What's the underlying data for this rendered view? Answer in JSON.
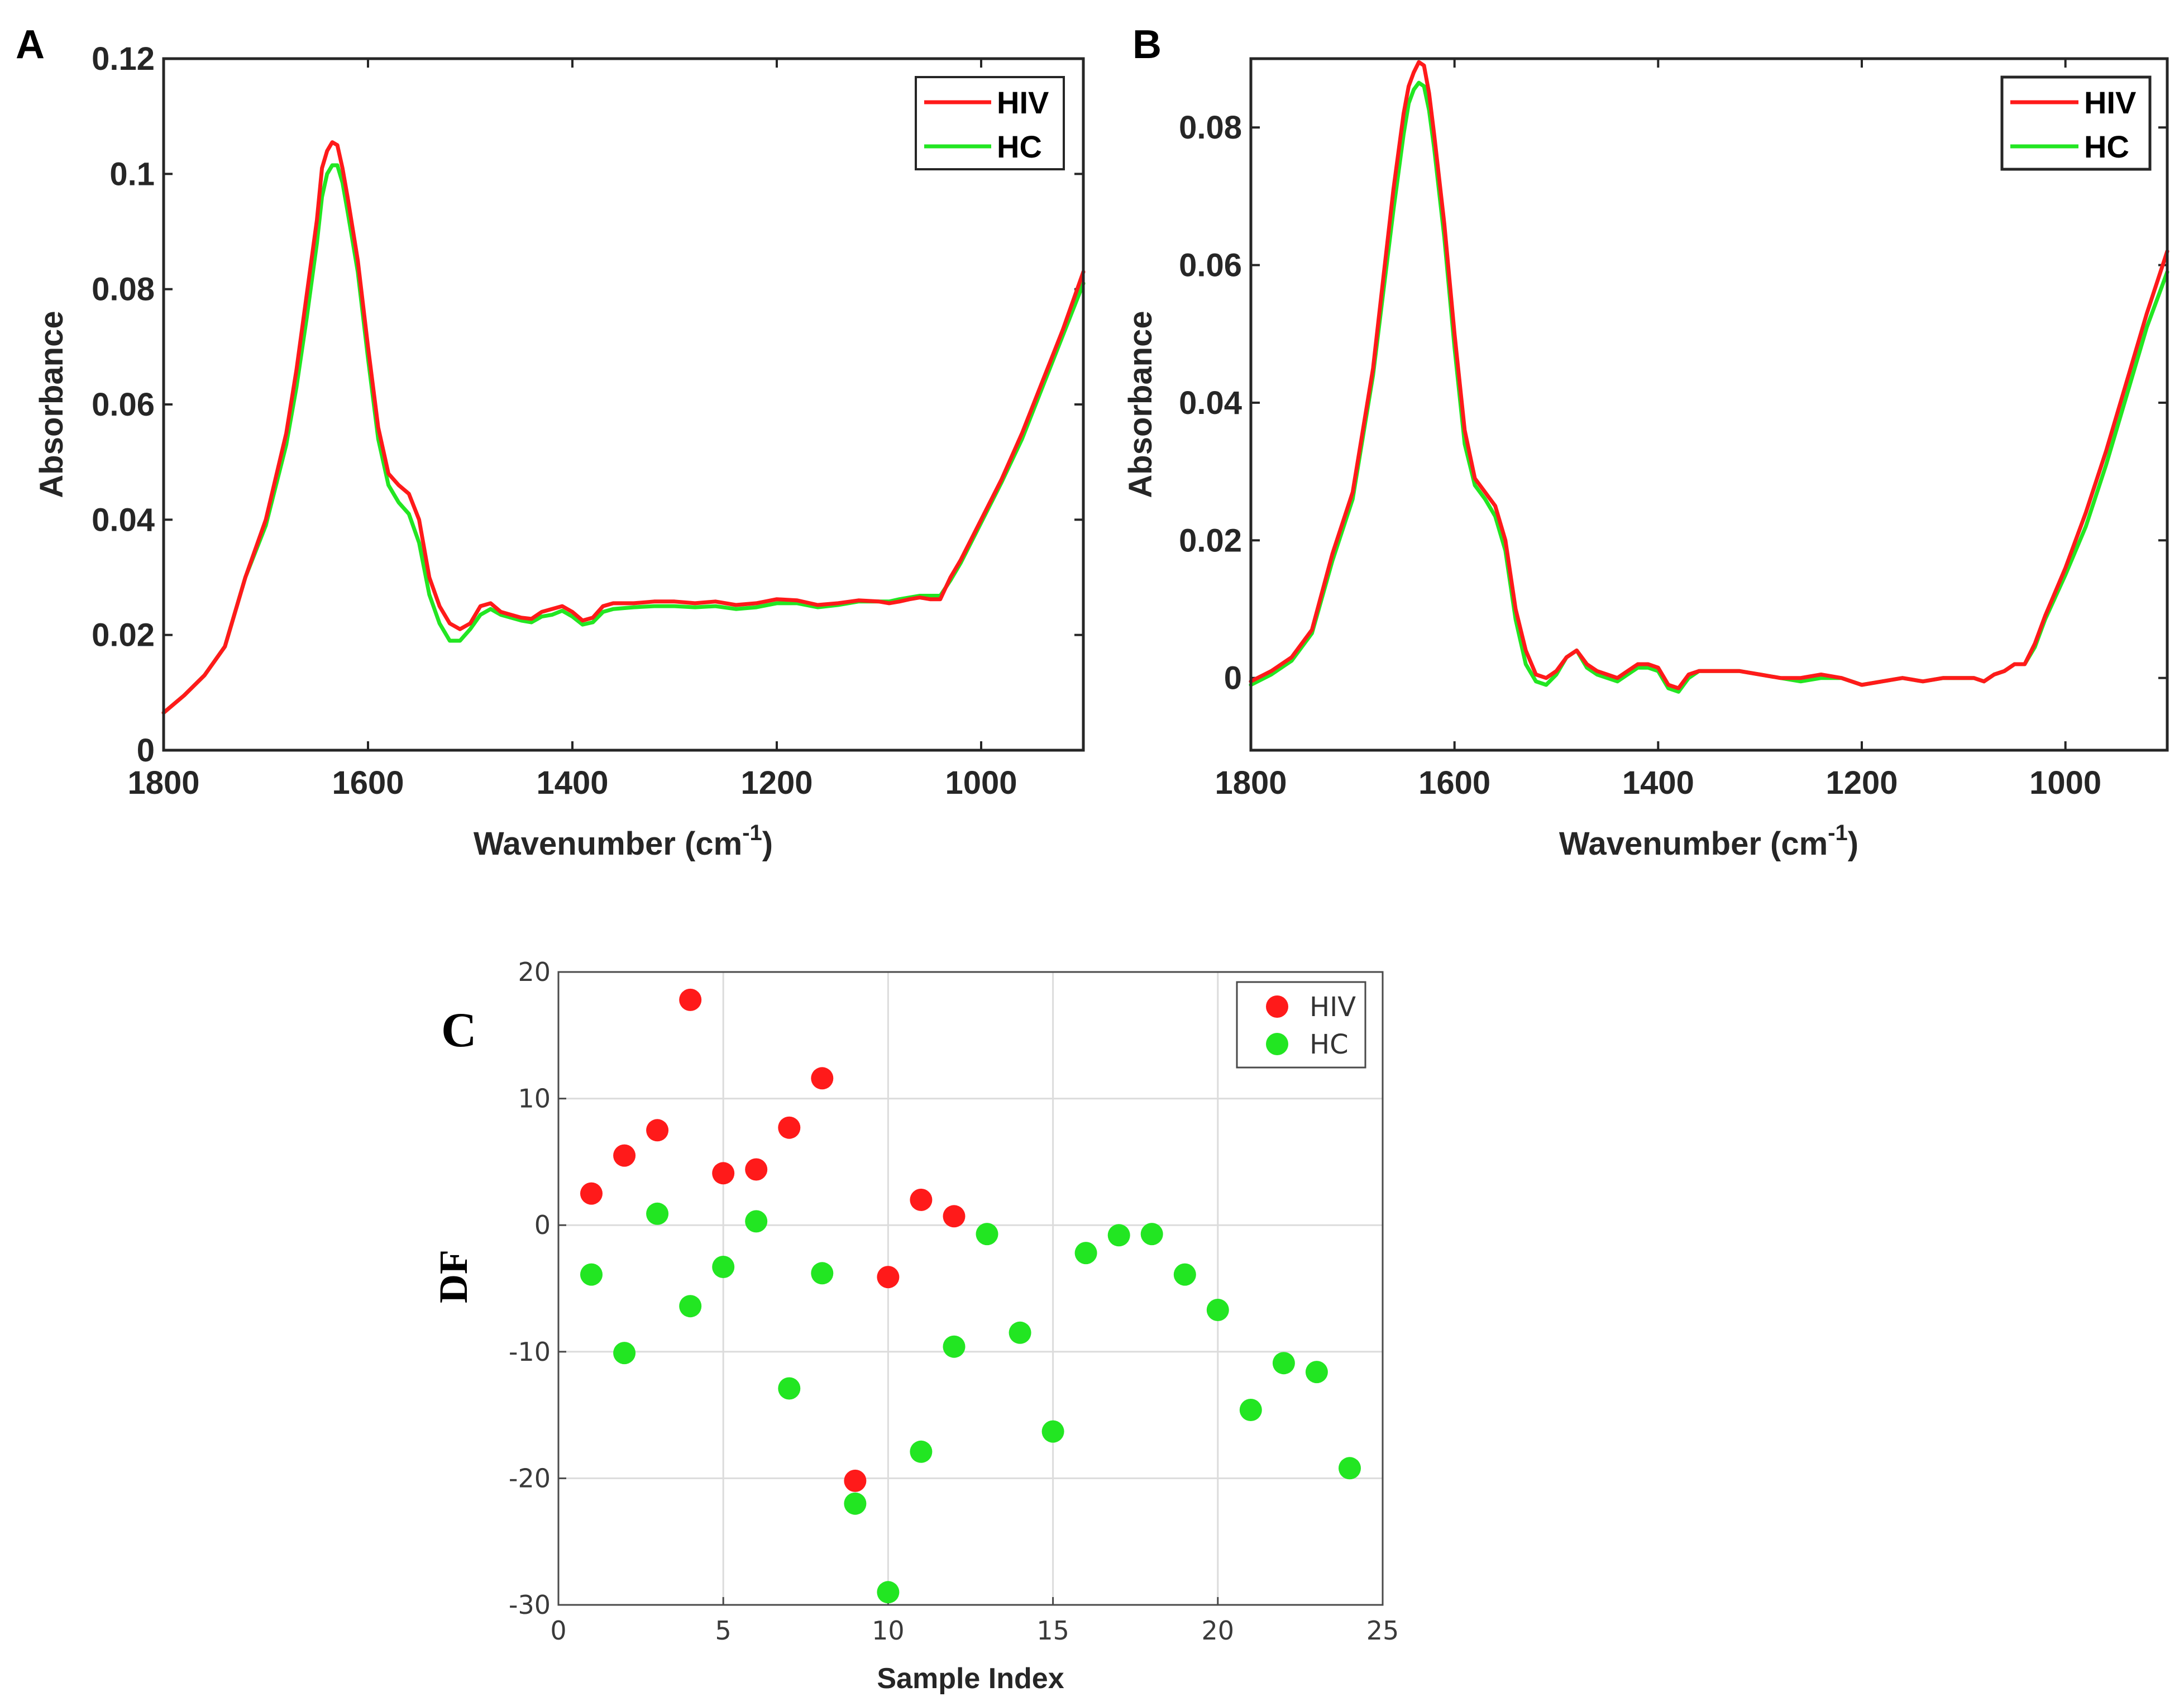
{
  "colors": {
    "hiv": "#ff1a1a",
    "hc": "#22e622"
  },
  "chart_data": [
    {
      "panel": "A",
      "type": "line",
      "xlabel": "Wavenumber (cm",
      "xlabel_sup": "-1",
      "xlabel_close": ")",
      "ylabel": "Absorbance",
      "xlim": [
        1800,
        900
      ],
      "ylim": [
        0,
        0.12
      ],
      "xticks": [
        1800,
        1600,
        1400,
        1200,
        1000
      ],
      "xtick_labels": [
        "1800",
        "1600",
        "1400",
        "1200",
        "1000"
      ],
      "yticks": [
        0,
        0.02,
        0.04,
        0.06,
        0.08,
        0.1,
        0.12
      ],
      "ytick_labels": [
        "0",
        "0.02",
        "0.04",
        "0.06",
        "0.08",
        "0.1",
        "0.12"
      ],
      "legend": "top-right",
      "series": [
        {
          "name": "HIV",
          "color": "#ff1a1a",
          "x": [
            1800,
            1780,
            1760,
            1740,
            1720,
            1700,
            1680,
            1670,
            1660,
            1650,
            1645,
            1640,
            1635,
            1630,
            1625,
            1620,
            1610,
            1600,
            1590,
            1580,
            1570,
            1560,
            1550,
            1540,
            1530,
            1520,
            1510,
            1500,
            1490,
            1480,
            1470,
            1460,
            1450,
            1440,
            1430,
            1420,
            1410,
            1400,
            1390,
            1380,
            1370,
            1360,
            1340,
            1320,
            1300,
            1280,
            1260,
            1240,
            1220,
            1200,
            1180,
            1160,
            1140,
            1120,
            1100,
            1090,
            1080,
            1070,
            1060,
            1050,
            1040,
            1030,
            1020,
            1000,
            980,
            960,
            940,
            920,
            900
          ],
          "y": [
            0.0065,
            0.0095,
            0.013,
            0.018,
            0.03,
            0.04,
            0.055,
            0.066,
            0.079,
            0.092,
            0.101,
            0.104,
            0.1055,
            0.105,
            0.101,
            0.096,
            0.085,
            0.07,
            0.056,
            0.048,
            0.046,
            0.0445,
            0.04,
            0.03,
            0.025,
            0.022,
            0.021,
            0.022,
            0.025,
            0.0255,
            0.024,
            0.0235,
            0.023,
            0.0228,
            0.024,
            0.0245,
            0.025,
            0.024,
            0.0225,
            0.023,
            0.025,
            0.0255,
            0.0255,
            0.0258,
            0.0258,
            0.0255,
            0.0258,
            0.0252,
            0.0255,
            0.0262,
            0.026,
            0.0252,
            0.0255,
            0.026,
            0.0258,
            0.0255,
            0.0258,
            0.0262,
            0.0265,
            0.0262,
            0.0262,
            0.03,
            0.033,
            0.04,
            0.047,
            0.055,
            0.064,
            0.073,
            0.083
          ]
        },
        {
          "name": "HC",
          "color": "#22e622",
          "x": [
            1800,
            1780,
            1760,
            1740,
            1720,
            1700,
            1680,
            1670,
            1660,
            1650,
            1645,
            1640,
            1635,
            1630,
            1625,
            1620,
            1610,
            1600,
            1590,
            1580,
            1570,
            1560,
            1550,
            1540,
            1530,
            1520,
            1510,
            1500,
            1490,
            1480,
            1470,
            1460,
            1450,
            1440,
            1430,
            1420,
            1410,
            1400,
            1390,
            1380,
            1370,
            1360,
            1340,
            1320,
            1300,
            1280,
            1260,
            1240,
            1220,
            1200,
            1180,
            1160,
            1140,
            1120,
            1100,
            1090,
            1080,
            1070,
            1060,
            1050,
            1040,
            1030,
            1020,
            1000,
            980,
            960,
            940,
            920,
            900
          ],
          "y": [
            0.0065,
            0.0095,
            0.013,
            0.018,
            0.03,
            0.039,
            0.053,
            0.063,
            0.075,
            0.088,
            0.096,
            0.1,
            0.1015,
            0.1015,
            0.0985,
            0.0935,
            0.083,
            0.068,
            0.054,
            0.046,
            0.043,
            0.041,
            0.036,
            0.027,
            0.022,
            0.019,
            0.019,
            0.021,
            0.0235,
            0.0245,
            0.0235,
            0.023,
            0.0225,
            0.0222,
            0.0232,
            0.0235,
            0.0242,
            0.0232,
            0.0218,
            0.0222,
            0.024,
            0.0245,
            0.0248,
            0.025,
            0.025,
            0.0248,
            0.025,
            0.0245,
            0.0248,
            0.0255,
            0.0255,
            0.0248,
            0.0252,
            0.0258,
            0.0258,
            0.0258,
            0.0262,
            0.0265,
            0.0268,
            0.0268,
            0.0268,
            0.0295,
            0.0325,
            0.0395,
            0.0465,
            0.054,
            0.063,
            0.072,
            0.081
          ]
        }
      ]
    },
    {
      "panel": "B",
      "type": "line",
      "xlabel": "Wavenumber (cm",
      "xlabel_sup": "-1",
      "xlabel_close": ")",
      "ylabel": "Absorbance",
      "xlim": [
        1800,
        900
      ],
      "ylim": [
        -0.0105,
        0.09
      ],
      "xticks": [
        1800,
        1600,
        1400,
        1200,
        1000
      ],
      "xtick_labels": [
        "1800",
        "1600",
        "1400",
        "1200",
        "1000"
      ],
      "yticks": [
        0,
        0.02,
        0.04,
        0.06,
        0.08
      ],
      "ytick_labels": [
        "0",
        "0.02",
        "0.04",
        "0.06",
        "0.08"
      ],
      "legend": "top-right",
      "series": [
        {
          "name": "HIV",
          "color": "#ff1a1a",
          "x": [
            1800,
            1780,
            1760,
            1740,
            1720,
            1700,
            1680,
            1670,
            1660,
            1650,
            1645,
            1640,
            1635,
            1630,
            1625,
            1620,
            1610,
            1600,
            1590,
            1580,
            1570,
            1560,
            1550,
            1540,
            1530,
            1520,
            1510,
            1500,
            1490,
            1480,
            1470,
            1460,
            1450,
            1440,
            1430,
            1420,
            1410,
            1400,
            1390,
            1380,
            1370,
            1360,
            1340,
            1320,
            1300,
            1280,
            1260,
            1240,
            1220,
            1200,
            1180,
            1160,
            1140,
            1120,
            1100,
            1090,
            1080,
            1070,
            1060,
            1050,
            1040,
            1030,
            1020,
            1000,
            980,
            960,
            940,
            920,
            900
          ],
          "y": [
            -0.0005,
            0.001,
            0.003,
            0.007,
            0.018,
            0.027,
            0.045,
            0.058,
            0.071,
            0.082,
            0.086,
            0.088,
            0.0895,
            0.089,
            0.085,
            0.079,
            0.066,
            0.05,
            0.036,
            0.029,
            0.027,
            0.025,
            0.02,
            0.01,
            0.004,
            0.0005,
            0,
            0.001,
            0.003,
            0.004,
            0.002,
            0.001,
            0.0005,
            0,
            0.001,
            0.002,
            0.002,
            0.0015,
            -0.001,
            -0.0015,
            0.0005,
            0.001,
            0.001,
            0.001,
            0.0005,
            0,
            0,
            0.0005,
            0,
            -0.001,
            -0.0005,
            0,
            -0.0005,
            0,
            0,
            0,
            -0.0005,
            0.0005,
            0.001,
            0.002,
            0.002,
            0.005,
            0.009,
            0.016,
            0.024,
            0.033,
            0.043,
            0.053,
            0.062
          ]
        },
        {
          "name": "HC",
          "color": "#22e622",
          "x": [
            1800,
            1780,
            1760,
            1740,
            1720,
            1700,
            1680,
            1670,
            1660,
            1650,
            1645,
            1640,
            1635,
            1630,
            1625,
            1620,
            1610,
            1600,
            1590,
            1580,
            1570,
            1560,
            1550,
            1540,
            1530,
            1520,
            1510,
            1500,
            1490,
            1480,
            1470,
            1460,
            1450,
            1440,
            1430,
            1420,
            1410,
            1400,
            1390,
            1380,
            1370,
            1360,
            1340,
            1320,
            1300,
            1280,
            1260,
            1240,
            1220,
            1200,
            1180,
            1160,
            1140,
            1120,
            1100,
            1090,
            1080,
            1070,
            1060,
            1050,
            1040,
            1030,
            1020,
            1000,
            980,
            960,
            940,
            920,
            900
          ],
          "y": [
            -0.001,
            0.0005,
            0.0025,
            0.0065,
            0.017,
            0.026,
            0.044,
            0.056,
            0.068,
            0.079,
            0.0835,
            0.0855,
            0.0865,
            0.086,
            0.0825,
            0.077,
            0.064,
            0.048,
            0.034,
            0.028,
            0.026,
            0.0235,
            0.0185,
            0.0085,
            0.002,
            -0.0005,
            -0.001,
            0.0005,
            0.003,
            0.004,
            0.0015,
            0.0005,
            0,
            -0.0005,
            0.0005,
            0.0015,
            0.0015,
            0.001,
            -0.0015,
            -0.002,
            0,
            0.001,
            0.001,
            0.001,
            0.0005,
            0,
            -0.0005,
            0,
            0,
            -0.001,
            -0.0005,
            0,
            -0.0005,
            0,
            0,
            0,
            -0.0005,
            0.0005,
            0.001,
            0.002,
            0.002,
            0.0045,
            0.0085,
            0.015,
            0.022,
            0.031,
            0.041,
            0.051,
            0.059
          ]
        }
      ]
    },
    {
      "panel": "C",
      "type": "scatter",
      "xlabel": "Sample Index",
      "ylabel": "DF",
      "xlim": [
        0,
        25
      ],
      "ylim": [
        -30,
        20
      ],
      "xticks": [
        0,
        5,
        10,
        15,
        20,
        25
      ],
      "xtick_labels": [
        "0",
        "5",
        "10",
        "15",
        "20",
        "25"
      ],
      "yticks": [
        -30,
        -20,
        -10,
        0,
        10,
        20
      ],
      "ytick_labels": [
        "-30",
        "-20",
        "-10",
        "0",
        "10",
        "20"
      ],
      "grid": true,
      "legend": "top-right",
      "series": [
        {
          "name": "HIV",
          "color": "#ff1a1a",
          "x": [
            1,
            2,
            3,
            4,
            5,
            6,
            7,
            8,
            9,
            10,
            11,
            12
          ],
          "y": [
            2.5,
            5.5,
            7.5,
            17.8,
            4.1,
            4.4,
            7.7,
            11.6,
            -20.2,
            -4.1,
            2,
            0.7
          ]
        },
        {
          "name": "HC",
          "color": "#22e622",
          "x": [
            1,
            2,
            3,
            4,
            5,
            6,
            7,
            8,
            9,
            10,
            11,
            12,
            13,
            14,
            15,
            16,
            17,
            18,
            19,
            20,
            21,
            22,
            23,
            24
          ],
          "y": [
            -3.9,
            -10.1,
            0.9,
            -6.4,
            -3.3,
            0.3,
            -12.9,
            -3.8,
            -22,
            -29,
            -17.9,
            -9.6,
            -0.7,
            -8.5,
            -16.3,
            -2.2,
            -0.8,
            -0.7,
            -3.9,
            -6.7,
            -14.6,
            -10.9,
            -11.6,
            -19.2
          ]
        }
      ]
    }
  ]
}
